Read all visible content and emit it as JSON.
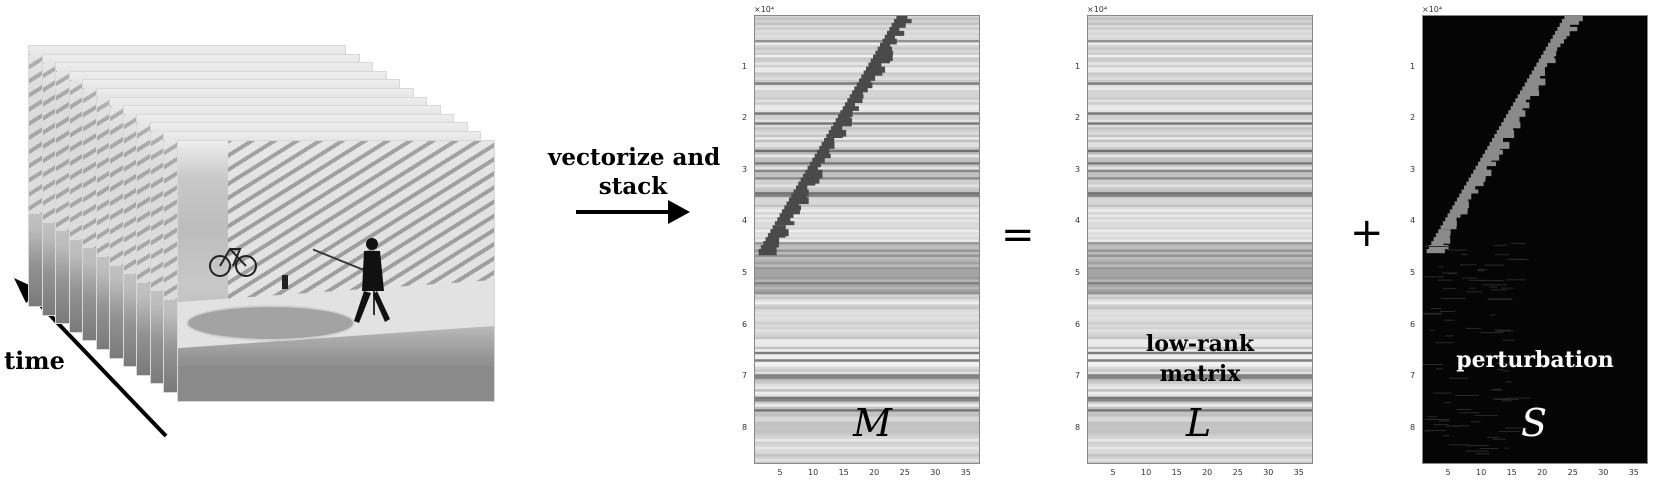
{
  "left": {
    "time_label": "time",
    "arrow_label_line1": "vectorize and",
    "arrow_label_line2": "stack"
  },
  "operators": {
    "equals": "=",
    "plus": "+"
  },
  "panels": [
    {
      "key": "M",
      "letter": "M",
      "caption_line1": "",
      "caption_line2": "",
      "theme": "light",
      "exponent": "×10⁴",
      "yticks": [
        "1",
        "2",
        "3",
        "4",
        "5",
        "6",
        "7",
        "8"
      ],
      "xticks": [
        "5",
        "10",
        "15",
        "20",
        "25",
        "30",
        "35"
      ]
    },
    {
      "key": "L",
      "letter": "L",
      "caption_line1": "low-rank",
      "caption_line2": "matrix",
      "theme": "light",
      "exponent": "×10⁴",
      "yticks": [
        "1",
        "2",
        "3",
        "4",
        "5",
        "6",
        "7",
        "8"
      ],
      "xticks": [
        "5",
        "10",
        "15",
        "20",
        "25",
        "30",
        "35"
      ]
    },
    {
      "key": "S",
      "letter": "S",
      "caption_line1": "perturbation",
      "caption_line2": "",
      "theme": "dark",
      "exponent": "×10⁴",
      "yticks": [
        "1",
        "2",
        "3",
        "4",
        "5",
        "6",
        "7",
        "8"
      ],
      "xticks": [
        "5",
        "10",
        "15",
        "20",
        "25",
        "30",
        "35"
      ]
    }
  ]
}
